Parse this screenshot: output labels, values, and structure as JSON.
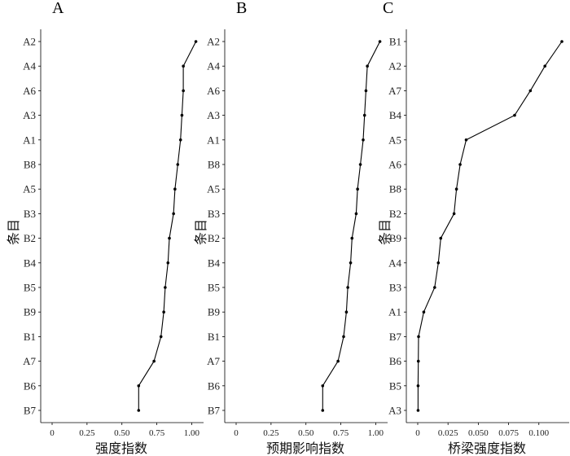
{
  "chart_data": [
    {
      "type": "line",
      "panel": "A",
      "xlabel": "强度指数",
      "ylabel": "条目",
      "xlim": [
        0,
        1.05
      ],
      "xticks": [
        "0",
        "0.25",
        "0.50",
        "0.75",
        "1.00"
      ],
      "xtick_values": [
        0,
        0.25,
        0.5,
        0.75,
        1.0
      ],
      "categories": [
        "A2",
        "A4",
        "A6",
        "A3",
        "A1",
        "B8",
        "A5",
        "B3",
        "B2",
        "B4",
        "B5",
        "B9",
        "B1",
        "A7",
        "B6",
        "B7"
      ],
      "values": [
        1.03,
        0.94,
        0.94,
        0.93,
        0.92,
        0.9,
        0.88,
        0.87,
        0.84,
        0.83,
        0.81,
        0.8,
        0.78,
        0.73,
        0.62,
        0.62
      ]
    },
    {
      "type": "line",
      "panel": "B",
      "xlabel": "预期影响指数",
      "ylabel": "条目",
      "xlim": [
        0,
        1.05
      ],
      "xticks": [
        "0",
        "0.25",
        "0.50",
        "0.75",
        "1.00"
      ],
      "xtick_values": [
        0,
        0.25,
        0.5,
        0.75,
        1.0
      ],
      "categories": [
        "A2",
        "A4",
        "A6",
        "A3",
        "A1",
        "B8",
        "A5",
        "B3",
        "B2",
        "B4",
        "B5",
        "B9",
        "B1",
        "A7",
        "B6",
        "B7"
      ],
      "values": [
        1.03,
        0.94,
        0.93,
        0.92,
        0.91,
        0.89,
        0.87,
        0.86,
        0.83,
        0.82,
        0.8,
        0.79,
        0.77,
        0.73,
        0.62,
        0.62
      ]
    },
    {
      "type": "line",
      "panel": "C",
      "xlabel": "桥梁强度指数",
      "ylabel": "条目",
      "xlim": [
        0,
        0.121
      ],
      "xticks": [
        "0",
        "0.025",
        "0.050",
        "0.075",
        "0.100"
      ],
      "xtick_values": [
        0,
        0.025,
        0.05,
        0.075,
        0.1
      ],
      "categories": [
        "B1",
        "A2",
        "A7",
        "B4",
        "A5",
        "A6",
        "B8",
        "B2",
        "B9",
        "A4",
        "B3",
        "A1",
        "B7",
        "B6",
        "B5",
        "A3"
      ],
      "values": [
        0.119,
        0.105,
        0.093,
        0.08,
        0.04,
        0.035,
        0.032,
        0.03,
        0.019,
        0.017,
        0.014,
        0.005,
        0.0007,
        0.0005,
        0.0003,
        0.0003
      ]
    }
  ]
}
